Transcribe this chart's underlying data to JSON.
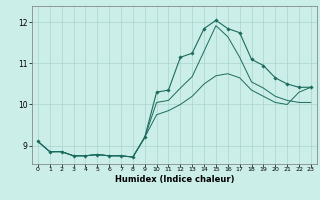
{
  "xlabel": "Humidex (Indice chaleur)",
  "xlim": [
    -0.5,
    23.5
  ],
  "ylim": [
    8.55,
    12.4
  ],
  "yticks": [
    9,
    10,
    11,
    12
  ],
  "xticks": [
    0,
    1,
    2,
    3,
    4,
    5,
    6,
    7,
    8,
    9,
    10,
    11,
    12,
    13,
    14,
    15,
    16,
    17,
    18,
    19,
    20,
    21,
    22,
    23
  ],
  "bg_color": "#cceee8",
  "grid_color": "#aad4ce",
  "line_color": "#1a6b5e",
  "line1_y": [
    9.1,
    8.85,
    8.85,
    8.75,
    8.75,
    8.78,
    8.75,
    8.75,
    8.72,
    9.2,
    10.3,
    10.35,
    11.15,
    11.25,
    11.85,
    12.05,
    11.85,
    11.75,
    11.1,
    10.95,
    10.65,
    10.5,
    10.42,
    10.42
  ],
  "line2_y": [
    9.1,
    8.85,
    8.85,
    8.75,
    8.75,
    8.78,
    8.75,
    8.75,
    8.72,
    9.2,
    10.05,
    10.1,
    10.4,
    10.68,
    11.3,
    11.92,
    11.65,
    11.15,
    10.55,
    10.4,
    10.2,
    10.1,
    10.05,
    10.05
  ],
  "line3_y": [
    9.1,
    8.85,
    8.85,
    8.75,
    8.75,
    8.78,
    8.75,
    8.75,
    8.72,
    9.2,
    9.75,
    9.85,
    10.0,
    10.2,
    10.5,
    10.7,
    10.75,
    10.65,
    10.35,
    10.2,
    10.05,
    10.0,
    10.3,
    10.42
  ]
}
